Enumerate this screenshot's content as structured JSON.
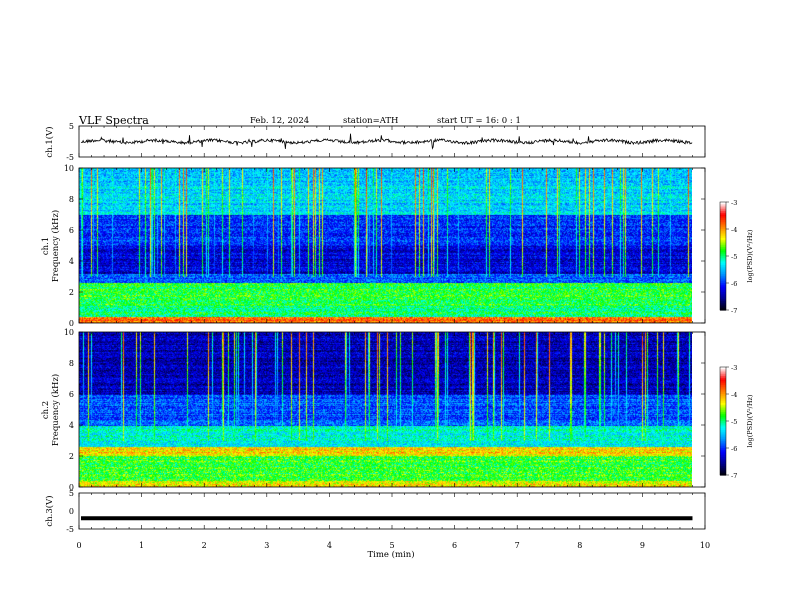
{
  "header": {
    "title": "VLF  Spectra",
    "date": "Feb. 12, 2024",
    "station": "station=ATH",
    "start": "start  UT  =    16: 0   : 1"
  },
  "chart_data": [
    {
      "type": "line",
      "panel": "ch1-waveform",
      "ylabel": "ch.1(V)",
      "ylim": [
        -5,
        5
      ],
      "yticks": [
        "5",
        "-5"
      ],
      "baseline": 0
    },
    {
      "type": "heatmap",
      "panel": "ch1-spectrogram",
      "ylabel_channel": "ch.1",
      "ylabel": "Frequency  (kHz)",
      "ylim": [
        0,
        10
      ],
      "yticks": [
        "0",
        "2",
        "4",
        "6",
        "8",
        "10"
      ],
      "colorbar": {
        "label": "log(PSD)(V²/Hz)",
        "range": [
          -7,
          -3
        ],
        "ticks": [
          "-3",
          "-4",
          "-5",
          "-6",
          "-7"
        ]
      }
    },
    {
      "type": "heatmap",
      "panel": "ch2-spectrogram",
      "ylabel_channel": "ch.2",
      "ylabel": "Frequency  (kHz)",
      "ylim": [
        0,
        10
      ],
      "yticks": [
        "0",
        "2",
        "4",
        "6",
        "8",
        "10"
      ],
      "colorbar": {
        "label": "log(PSD)(V²/Hz)",
        "range": [
          -7,
          -3
        ],
        "ticks": [
          "-3",
          "-4",
          "-5",
          "-6",
          "-7"
        ]
      }
    },
    {
      "type": "line",
      "panel": "ch3-waveform",
      "ylabel": "ch.3(V)",
      "ylim": [
        -5,
        5
      ],
      "yticks": [
        "5",
        "0",
        "-5"
      ],
      "baseline": -2
    }
  ],
  "xaxis": {
    "label": "Time  (min)",
    "range": [
      0,
      10
    ],
    "ticks": [
      "0",
      "1",
      "2",
      "3",
      "4",
      "5",
      "6",
      "7",
      "8",
      "9",
      "10"
    ],
    "data_end": 9.8
  },
  "colors": {
    "scale": [
      "#000000",
      "#00008b",
      "#0000ff",
      "#0090ff",
      "#00ffff",
      "#00ff00",
      "#ffff00",
      "#ff8000",
      "#ff0000",
      "#ffffff"
    ]
  }
}
